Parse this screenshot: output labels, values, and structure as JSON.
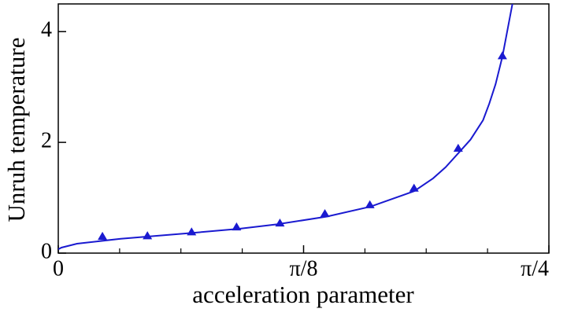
{
  "chart_data": {
    "type": "line",
    "xlabel": "acceleration parameter",
    "ylabel": "Unruh temperature",
    "xlim": [
      0,
      0.7854
    ],
    "ylim": [
      0,
      4.5
    ],
    "xticks": [
      0,
      {
        "value": 0.3927,
        "label": "π/8"
      },
      {
        "value": 0.7854,
        "label": "π/4"
      }
    ],
    "xminorticks": [
      0.0982,
      0.1963,
      0.2945,
      0.4909,
      0.589,
      0.6872
    ],
    "yticks": [
      0,
      2,
      4
    ],
    "series": [
      {
        "mark": "line",
        "color": "#1a1ad0",
        "x": [
          0,
          0.005,
          0.03,
          0.1,
          0.2,
          0.29,
          0.35,
          0.43,
          0.5,
          0.57,
          0.6,
          0.62,
          0.64,
          0.66,
          0.68,
          0.69,
          0.7,
          0.711,
          0.727
        ],
        "values": [
          0.07,
          0.1,
          0.17,
          0.26,
          0.35,
          0.44,
          0.52,
          0.66,
          0.84,
          1.12,
          1.35,
          1.55,
          1.8,
          2.05,
          2.4,
          2.7,
          3.05,
          3.55,
          4.5
        ]
      },
      {
        "mark": "triangle",
        "color": "#1a1ad0",
        "x": [
          0.0707,
          0.1427,
          0.2134,
          0.2854,
          0.3548,
          0.4268,
          0.4988,
          0.5695,
          0.6402,
          0.7109
        ],
        "values": [
          0.3,
          0.31,
          0.38,
          0.47,
          0.54,
          0.71,
          0.87,
          1.17,
          1.89,
          3.56
        ]
      }
    ]
  }
}
